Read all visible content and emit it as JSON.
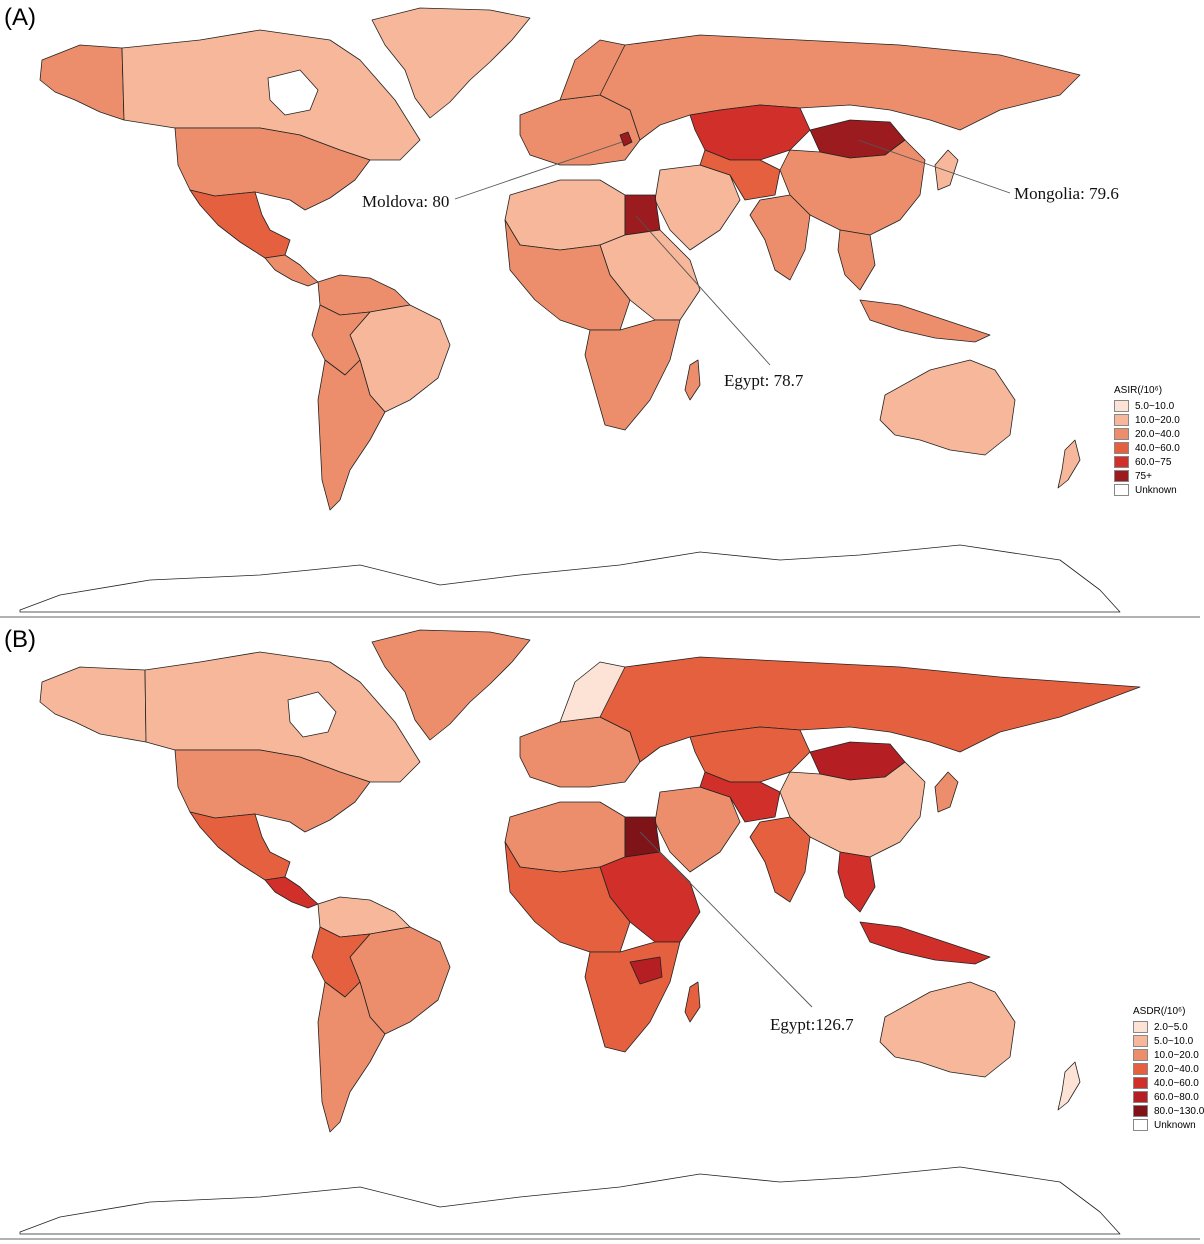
{
  "panel_a": {
    "label": "(A)",
    "legend_title": "ASIR(/10⁶)",
    "legend": [
      {
        "label": "5.0~10.0",
        "color": "#fde3d6"
      },
      {
        "label": "10.0~20.0",
        "color": "#f6b79a"
      },
      {
        "label": "20.0~40.0",
        "color": "#ec8e6c"
      },
      {
        "label": "40.0~60.0",
        "color": "#e4603f"
      },
      {
        "label": "60.0~75",
        "color": "#d1302a"
      },
      {
        "label": "75+",
        "color": "#9c1b1f"
      },
      {
        "label": "Unknown",
        "color": "#ffffff"
      }
    ],
    "callouts": [
      {
        "text": "Moldova: 80"
      },
      {
        "text": "Mongolia: 79.6"
      },
      {
        "text": "Egypt: 78.7"
      }
    ]
  },
  "panel_b": {
    "label": "(B)",
    "legend_title": "ASDR(/10⁶)",
    "legend": [
      {
        "label": "2.0~5.0",
        "color": "#fde3d6"
      },
      {
        "label": "5.0~10.0",
        "color": "#f6b79a"
      },
      {
        "label": "10.0~20.0",
        "color": "#ec8e6c"
      },
      {
        "label": "20.0~40.0",
        "color": "#e4603f"
      },
      {
        "label": "40.0~60.0",
        "color": "#d1302a"
      },
      {
        "label": "60.0~80.0",
        "color": "#b51f24"
      },
      {
        "label": "80.0~130.0",
        "color": "#7f1418"
      },
      {
        "label": "Unknown",
        "color": "#ffffff"
      }
    ],
    "callouts": [
      {
        "text": "Egypt:126.7"
      }
    ]
  }
}
